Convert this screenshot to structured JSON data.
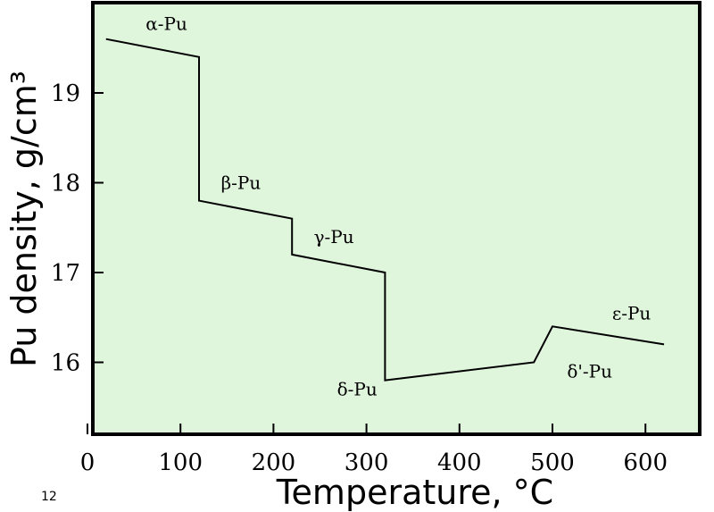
{
  "chart_data": {
    "type": "line",
    "title": "",
    "xlabel": "Temperature, °C",
    "ylabel": "Pu density, g/cm³",
    "xlim": [
      0,
      650
    ],
    "ylim": [
      15.0,
      20.0
    ],
    "x_ticks": [
      0,
      100,
      200,
      300,
      400,
      500,
      600
    ],
    "x_tick_labels": [
      "0",
      "100",
      "200",
      "300",
      "400",
      "500",
      "600"
    ],
    "y_ticks": [
      16,
      17,
      18,
      19
    ],
    "y_tick_labels": [
      "16",
      "17",
      "18",
      "19"
    ],
    "grid": false,
    "background_color": "#dff5dc",
    "line_color": "#000000",
    "series": [
      {
        "x": [
          20,
          120,
          120,
          220,
          220,
          320,
          320,
          480,
          500,
          620
        ],
        "y": [
          19.6,
          19.4,
          17.8,
          17.6,
          17.2,
          17.0,
          15.8,
          16.0,
          16.4,
          16.2
        ]
      }
    ],
    "annotations": [
      {
        "text": "α-Pu",
        "x": 85,
        "y": 19.7
      },
      {
        "text": "β-Pu",
        "x": 165,
        "y": 17.93
      },
      {
        "text": "γ-Pu",
        "x": 265,
        "y": 17.33
      },
      {
        "text": "δ-Pu",
        "x": 290,
        "y": 15.63
      },
      {
        "text": "δ'-Pu",
        "x": 540,
        "y": 15.83
      },
      {
        "text": "ε-Pu",
        "x": 585,
        "y": 16.48
      }
    ]
  },
  "page": {
    "corner_note": "12"
  }
}
